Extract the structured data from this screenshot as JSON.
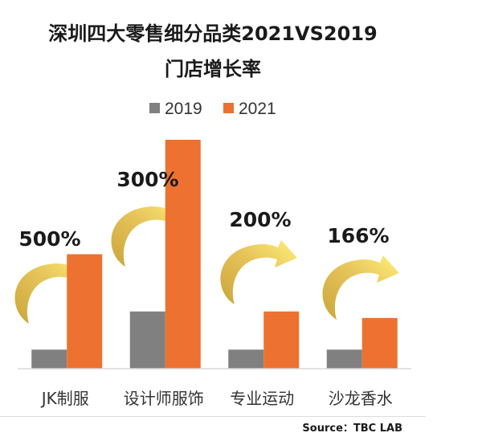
{
  "title_line1": "深圳四大零售细分品类2021VS2019",
  "title_line2": "门店增长率",
  "source": "Source：TBC LAB",
  "chart_data": {
    "type": "bar",
    "title": "深圳四大零售细分品类2021VS2019门店增长率",
    "categories": [
      "JK制服",
      "设计师服饰",
      "专业运动",
      "沙龙香水"
    ],
    "series": [
      {
        "name": "2019",
        "color": "#808080",
        "values": [
          1,
          3,
          1,
          1
        ]
      },
      {
        "name": "2021",
        "color": "#ed7131",
        "values": [
          6,
          12,
          3,
          2.66
        ]
      }
    ],
    "growth_labels": [
      "500%",
      "300%",
      "200%",
      "166%"
    ],
    "ylim": [
      0,
      12
    ],
    "grid": false,
    "legend": "top",
    "arrow_color": "#d8b04a"
  }
}
